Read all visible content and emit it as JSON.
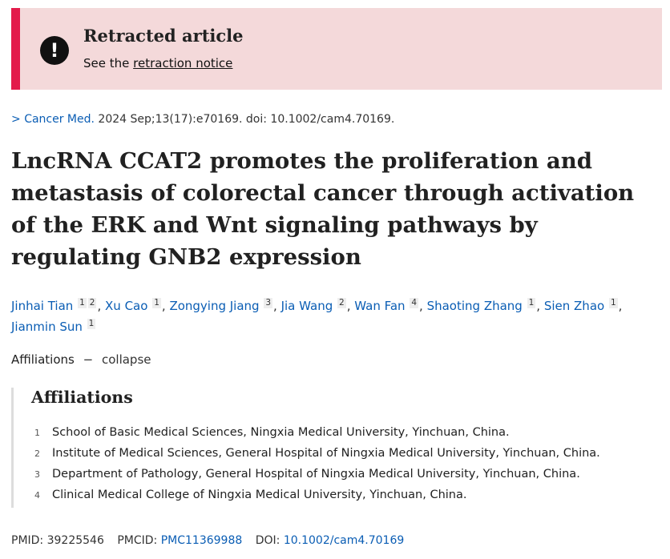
{
  "banner": {
    "icon": "exclamation-icon",
    "title": "Retracted article",
    "sub_prefix": "See the ",
    "sub_link": "retraction notice",
    "accent_color": "#e31b4b",
    "bg_color": "#f4d9da"
  },
  "citation": {
    "arrow": ">",
    "journal": "Cancer Med.",
    "details": "2024 Sep;13(17):e70169. doi: 10.1002/cam4.70169."
  },
  "title": "LncRNA CCAT2 promotes the proliferation and metastasis of colorectal cancer through activation of the ERK and Wnt signaling pathways by regulating GNB2 expression",
  "authors": [
    {
      "name": "Jinhai Tian",
      "sups": [
        "1",
        "2"
      ]
    },
    {
      "name": "Xu Cao",
      "sups": [
        "1"
      ]
    },
    {
      "name": "Zongying Jiang",
      "sups": [
        "3"
      ]
    },
    {
      "name": "Jia Wang",
      "sups": [
        "2"
      ]
    },
    {
      "name": "Wan Fan",
      "sups": [
        "4"
      ]
    },
    {
      "name": "Shaoting Zhang",
      "sups": [
        "1"
      ]
    },
    {
      "name": "Sien Zhao",
      "sups": [
        "1"
      ]
    },
    {
      "name": "Jianmin Sun",
      "sups": [
        "1"
      ]
    }
  ],
  "affiliations_toggle": {
    "label": "Affiliations",
    "dash": "−",
    "action": "collapse"
  },
  "affiliations": {
    "heading": "Affiliations",
    "items": [
      {
        "num": "1",
        "text": "School of Basic Medical Sciences, Ningxia Medical University, Yinchuan, China."
      },
      {
        "num": "2",
        "text": "Institute of Medical Sciences, General Hospital of Ningxia Medical University, Yinchuan, China."
      },
      {
        "num": "3",
        "text": "Department of Pathology, General Hospital of Ningxia Medical University, Yinchuan, China."
      },
      {
        "num": "4",
        "text": "Clinical Medical College of Ningxia Medical University, Yinchuan, China."
      }
    ]
  },
  "ids": {
    "pmid_label": "PMID:",
    "pmid": "39225546",
    "pmcid_label": "PMCID:",
    "pmcid": "PMC11369988",
    "doi_label": "DOI:",
    "doi": "10.1002/cam4.70169"
  }
}
